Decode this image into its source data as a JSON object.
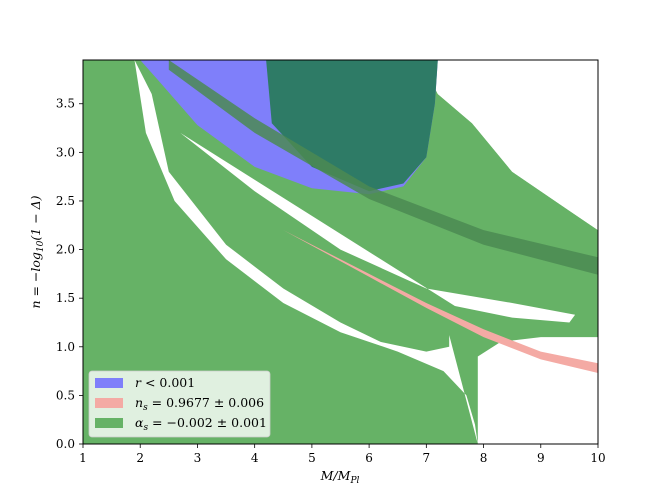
{
  "chart_data": {
    "type": "area",
    "title": "",
    "xlabel": "M/M_{Pl}",
    "ylabel": "n = -log_{10}(1 - Δ)",
    "xlim": [
      1,
      10
    ],
    "ylim": [
      0.0,
      3.95
    ],
    "xticks": [
      1,
      2,
      3,
      4,
      5,
      6,
      7,
      8,
      9,
      10
    ],
    "yticks": [
      "0.0",
      "0.5",
      "1.0",
      "1.5",
      "2.0",
      "2.5",
      "3.0",
      "3.5"
    ],
    "legend_placement": "lower-left",
    "colors": {
      "r": "#7f7ffa",
      "ns": "#f4aaa4",
      "alpha": "#66b266",
      "overlap_dark": "#2e7b66",
      "overlap_band": "#4b8a52"
    },
    "legend": [
      {
        "key": "r",
        "label_main": "r",
        "label_rest": "< 0.001"
      },
      {
        "key": "ns",
        "label_main": "n",
        "label_sub": "s",
        "label_rest": "= 0.9677 ± 0.006"
      },
      {
        "key": "alpha",
        "label_main": "α",
        "label_sub": "s",
        "label_rest": "= −0.002 ± 0.001"
      }
    ],
    "series": [
      {
        "name": "r < 0.001",
        "color": "#7f7ffa",
        "upper": [
          [
            2.0,
            3.95
          ],
          [
            7.2,
            3.95
          ]
        ],
        "lower": [
          [
            2.0,
            3.95
          ],
          [
            2.3,
            3.75
          ],
          [
            3.0,
            3.28
          ],
          [
            4.0,
            2.85
          ],
          [
            5.0,
            2.63
          ],
          [
            6.0,
            2.57
          ],
          [
            6.6,
            2.65
          ],
          [
            7.0,
            2.95
          ],
          [
            7.15,
            3.5
          ],
          [
            7.2,
            3.95
          ]
        ]
      },
      {
        "name": "n_s = 0.9677 ± 0.006",
        "color": "#f4aaa4",
        "band_top": [
          [
            4.5,
            2.2
          ],
          [
            6.0,
            1.75
          ],
          [
            7.0,
            1.45
          ],
          [
            8.0,
            1.18
          ],
          [
            9.0,
            0.95
          ],
          [
            10.0,
            0.83
          ]
        ],
        "band_bottom": [
          [
            4.5,
            2.2
          ],
          [
            6.0,
            1.72
          ],
          [
            7.0,
            1.4
          ],
          [
            8.0,
            1.1
          ],
          [
            9.0,
            0.87
          ],
          [
            10.0,
            0.73
          ]
        ]
      },
      {
        "name": "α_s = −0.002 ± 0.001",
        "color": "#66b266",
        "outer": [
          [
            1.0,
            3.95
          ],
          [
            1.0,
            0.0
          ],
          [
            7.9,
            0.0
          ],
          [
            7.9,
            0.9
          ],
          [
            8.3,
            1.05
          ],
          [
            9.0,
            1.1
          ],
          [
            10.0,
            1.1
          ],
          [
            10.0,
            2.2
          ],
          [
            9.5,
            2.4
          ],
          [
            8.5,
            2.8
          ],
          [
            7.8,
            3.3
          ],
          [
            7.2,
            3.6
          ],
          [
            6.9,
            3.95
          ]
        ],
        "hole_outer": [
          [
            1.9,
            3.95
          ],
          [
            2.1,
            3.2
          ],
          [
            2.6,
            2.5
          ],
          [
            3.5,
            1.9
          ],
          [
            4.5,
            1.45
          ],
          [
            5.5,
            1.15
          ],
          [
            6.5,
            0.95
          ],
          [
            7.3,
            0.75
          ],
          [
            7.7,
            0.5
          ],
          [
            7.85,
            0.2
          ],
          [
            7.9,
            0.0
          ]
        ],
        "hole_inner_lower": [
          [
            2.2,
            3.6
          ],
          [
            2.5,
            2.8
          ],
          [
            3.5,
            2.05
          ],
          [
            4.5,
            1.6
          ],
          [
            5.5,
            1.25
          ],
          [
            6.2,
            1.05
          ],
          [
            7.0,
            0.95
          ],
          [
            7.4,
            1.0
          ],
          [
            7.4,
            1.12
          ]
        ],
        "hole_upper": [
          [
            2.7,
            3.2
          ],
          [
            4.0,
            2.6
          ],
          [
            5.5,
            2.0
          ],
          [
            7.0,
            1.6
          ],
          [
            8.5,
            1.45
          ],
          [
            9.6,
            1.33
          ],
          [
            9.5,
            1.25
          ],
          [
            8.5,
            1.3
          ],
          [
            7.5,
            1.42
          ]
        ]
      }
    ],
    "dark_band": {
      "name": "overlap",
      "color": "#4b8a52",
      "top": [
        [
          2.5,
          3.95
        ],
        [
          4.0,
          3.35
        ],
        [
          6.0,
          2.65
        ],
        [
          8.0,
          2.2
        ],
        [
          10.0,
          1.92
        ]
      ],
      "bottom": [
        [
          2.5,
          3.85
        ],
        [
          4.0,
          3.2
        ],
        [
          6.0,
          2.52
        ],
        [
          8.0,
          2.05
        ],
        [
          10.0,
          1.74
        ]
      ]
    }
  }
}
